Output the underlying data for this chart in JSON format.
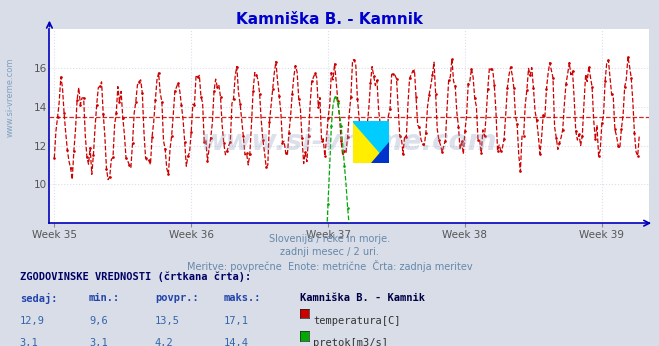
{
  "title": "Kamniška B. - Kamnik",
  "title_color": "#0000cc",
  "bg_color": "#d8dde8",
  "plot_bg_color": "#ffffff",
  "x_label_weeks": [
    "Week 35",
    "Week 36",
    "Week 37",
    "Week 38",
    "Week 39"
  ],
  "y_ticks": [
    10,
    12,
    14,
    16
  ],
  "y_min": 8.0,
  "y_max": 18.0,
  "temp_color": "#cc0000",
  "flow_color": "#00aa00",
  "avg_temp_value": 13.5,
  "subtitle_lines": [
    "Slovenija / reke in morje.",
    "zadnji mesec / 2 uri.",
    "Meritve: povprečne  Enote: metrične  Črta: zadnja meritev"
  ],
  "subtitle_color": "#6688aa",
  "table_header": "ZGODOVINSKE VREDNOSTI (črtkana črta):",
  "table_cols": [
    "sedaj:",
    "min.:",
    "povpr.:",
    "maks.:"
  ],
  "table_col_header": "Kamniška B. - Kamnik",
  "table_data": [
    [
      "12,9",
      "9,6",
      "13,5",
      "17,1",
      "temperatura[C]",
      "#cc0000"
    ],
    [
      "3,1",
      "3,1",
      "4,2",
      "14,4",
      "pretok[m3/s]",
      "#00aa00"
    ]
  ],
  "n_points": 360,
  "week_positions": [
    0,
    84,
    168,
    252,
    336
  ],
  "watermark": "www.si-vreme.com",
  "logo_colors": [
    "#ffee00",
    "#00ccff",
    "#0033cc"
  ],
  "axis_color": "#0000bb",
  "grid_color": "#ddddee",
  "tick_color": "#555555",
  "sidebar_text": "www.si-vreme.com",
  "sidebar_color": "#7799bb"
}
